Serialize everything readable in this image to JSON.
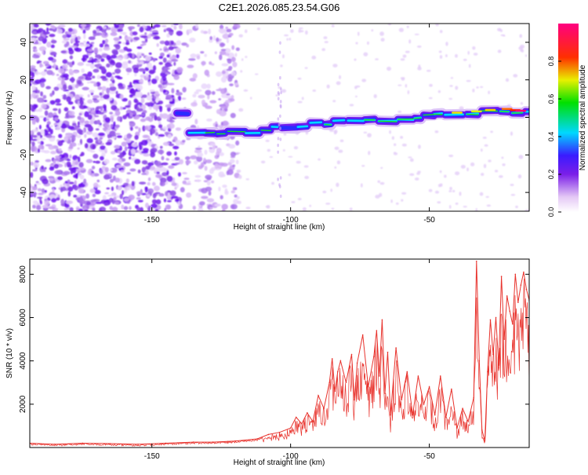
{
  "title": "C2E1.2026.085.23.54.G06",
  "chart_data": [
    {
      "type": "heatmap",
      "title": "C2E1.2026.085.23.54.G06",
      "xlabel": "Height of straight line (km)",
      "ylabel": "Frequency (Hz)",
      "xlim": [
        -194,
        -14
      ],
      "ylim": [
        -50,
        50
      ],
      "xticks": [
        -150,
        -100,
        -50
      ],
      "yticks": [
        -40,
        -20,
        0,
        20,
        40
      ],
      "colorbar": {
        "label": "Normalized spectral amplitude",
        "range": [
          0,
          1
        ],
        "ticks": [
          0.0,
          0.2,
          0.4,
          0.6,
          0.8
        ],
        "tick_labels": [
          "0.0",
          "0.2",
          "0.4",
          "0.6",
          "0.8"
        ],
        "colormap": "rainbow (white-purple-blue-cyan-green-yellow-red-magenta)"
      },
      "signal_track": {
        "description": "Narrow band of energy rising from about -8 Hz near -140 km to about +4 Hz near -16 km",
        "points": [
          [
            -140,
            -8
          ],
          [
            -120,
            -8
          ],
          [
            -100,
            -5
          ],
          [
            -80,
            -2
          ],
          [
            -60,
            0
          ],
          [
            -40,
            2
          ],
          [
            -25,
            4
          ],
          [
            -16,
            3
          ]
        ]
      },
      "noise_region": "Scattered purple low-amplitude speckle across all frequencies for heights below about -130 km"
    },
    {
      "type": "line",
      "xlabel": "Height of straight line (km)",
      "ylabel": "SNR (10 * v/v)",
      "xlim": [
        -194,
        -14
      ],
      "ylim": [
        0,
        8700
      ],
      "xticks": [
        -150,
        -100,
        -50
      ],
      "yticks": [
        2000,
        4000,
        6000,
        8000
      ],
      "color": "#e8322c",
      "series": [
        {
          "name": "SNR",
          "x": [
            -194,
            -185,
            -175,
            -165,
            -155,
            -145,
            -135,
            -128,
            -120,
            -112,
            -108,
            -104,
            -100,
            -98,
            -96,
            -94,
            -92,
            -90,
            -88,
            -86,
            -85,
            -84,
            -83,
            -82,
            -80,
            -78,
            -77,
            -76,
            -74,
            -72,
            -70,
            -69,
            -68,
            -67,
            -66,
            -65,
            -64,
            -62,
            -60,
            -58,
            -56,
            -54,
            -52,
            -50,
            -48,
            -46,
            -44,
            -42,
            -40,
            -38,
            -36,
            -34,
            -33,
            -32,
            -31,
            -30,
            -29,
            -28,
            -27,
            -26,
            -25,
            -24,
            -23,
            -22,
            -21,
            -20,
            -19,
            -18,
            -17,
            -16,
            -15,
            -14
          ],
          "values": [
            200,
            150,
            200,
            180,
            150,
            200,
            250,
            250,
            300,
            400,
            600,
            700,
            900,
            1400,
            1100,
            1600,
            1200,
            2400,
            1800,
            3000,
            4100,
            2600,
            3500,
            4000,
            3000,
            4300,
            2200,
            3900,
            5200,
            2800,
            4200,
            5400,
            3300,
            5900,
            2500,
            4400,
            1500,
            4600,
            2200,
            3500,
            1500,
            3300,
            2000,
            2800,
            1500,
            3300,
            1400,
            2700,
            900,
            1800,
            1200,
            2300,
            8600,
            4000,
            800,
            300,
            3500,
            5900,
            4300,
            6000,
            3800,
            7900,
            5000,
            7000,
            6300,
            5700,
            8000,
            6700,
            7500,
            8100,
            7300,
            6800
          ]
        }
      ]
    }
  ]
}
